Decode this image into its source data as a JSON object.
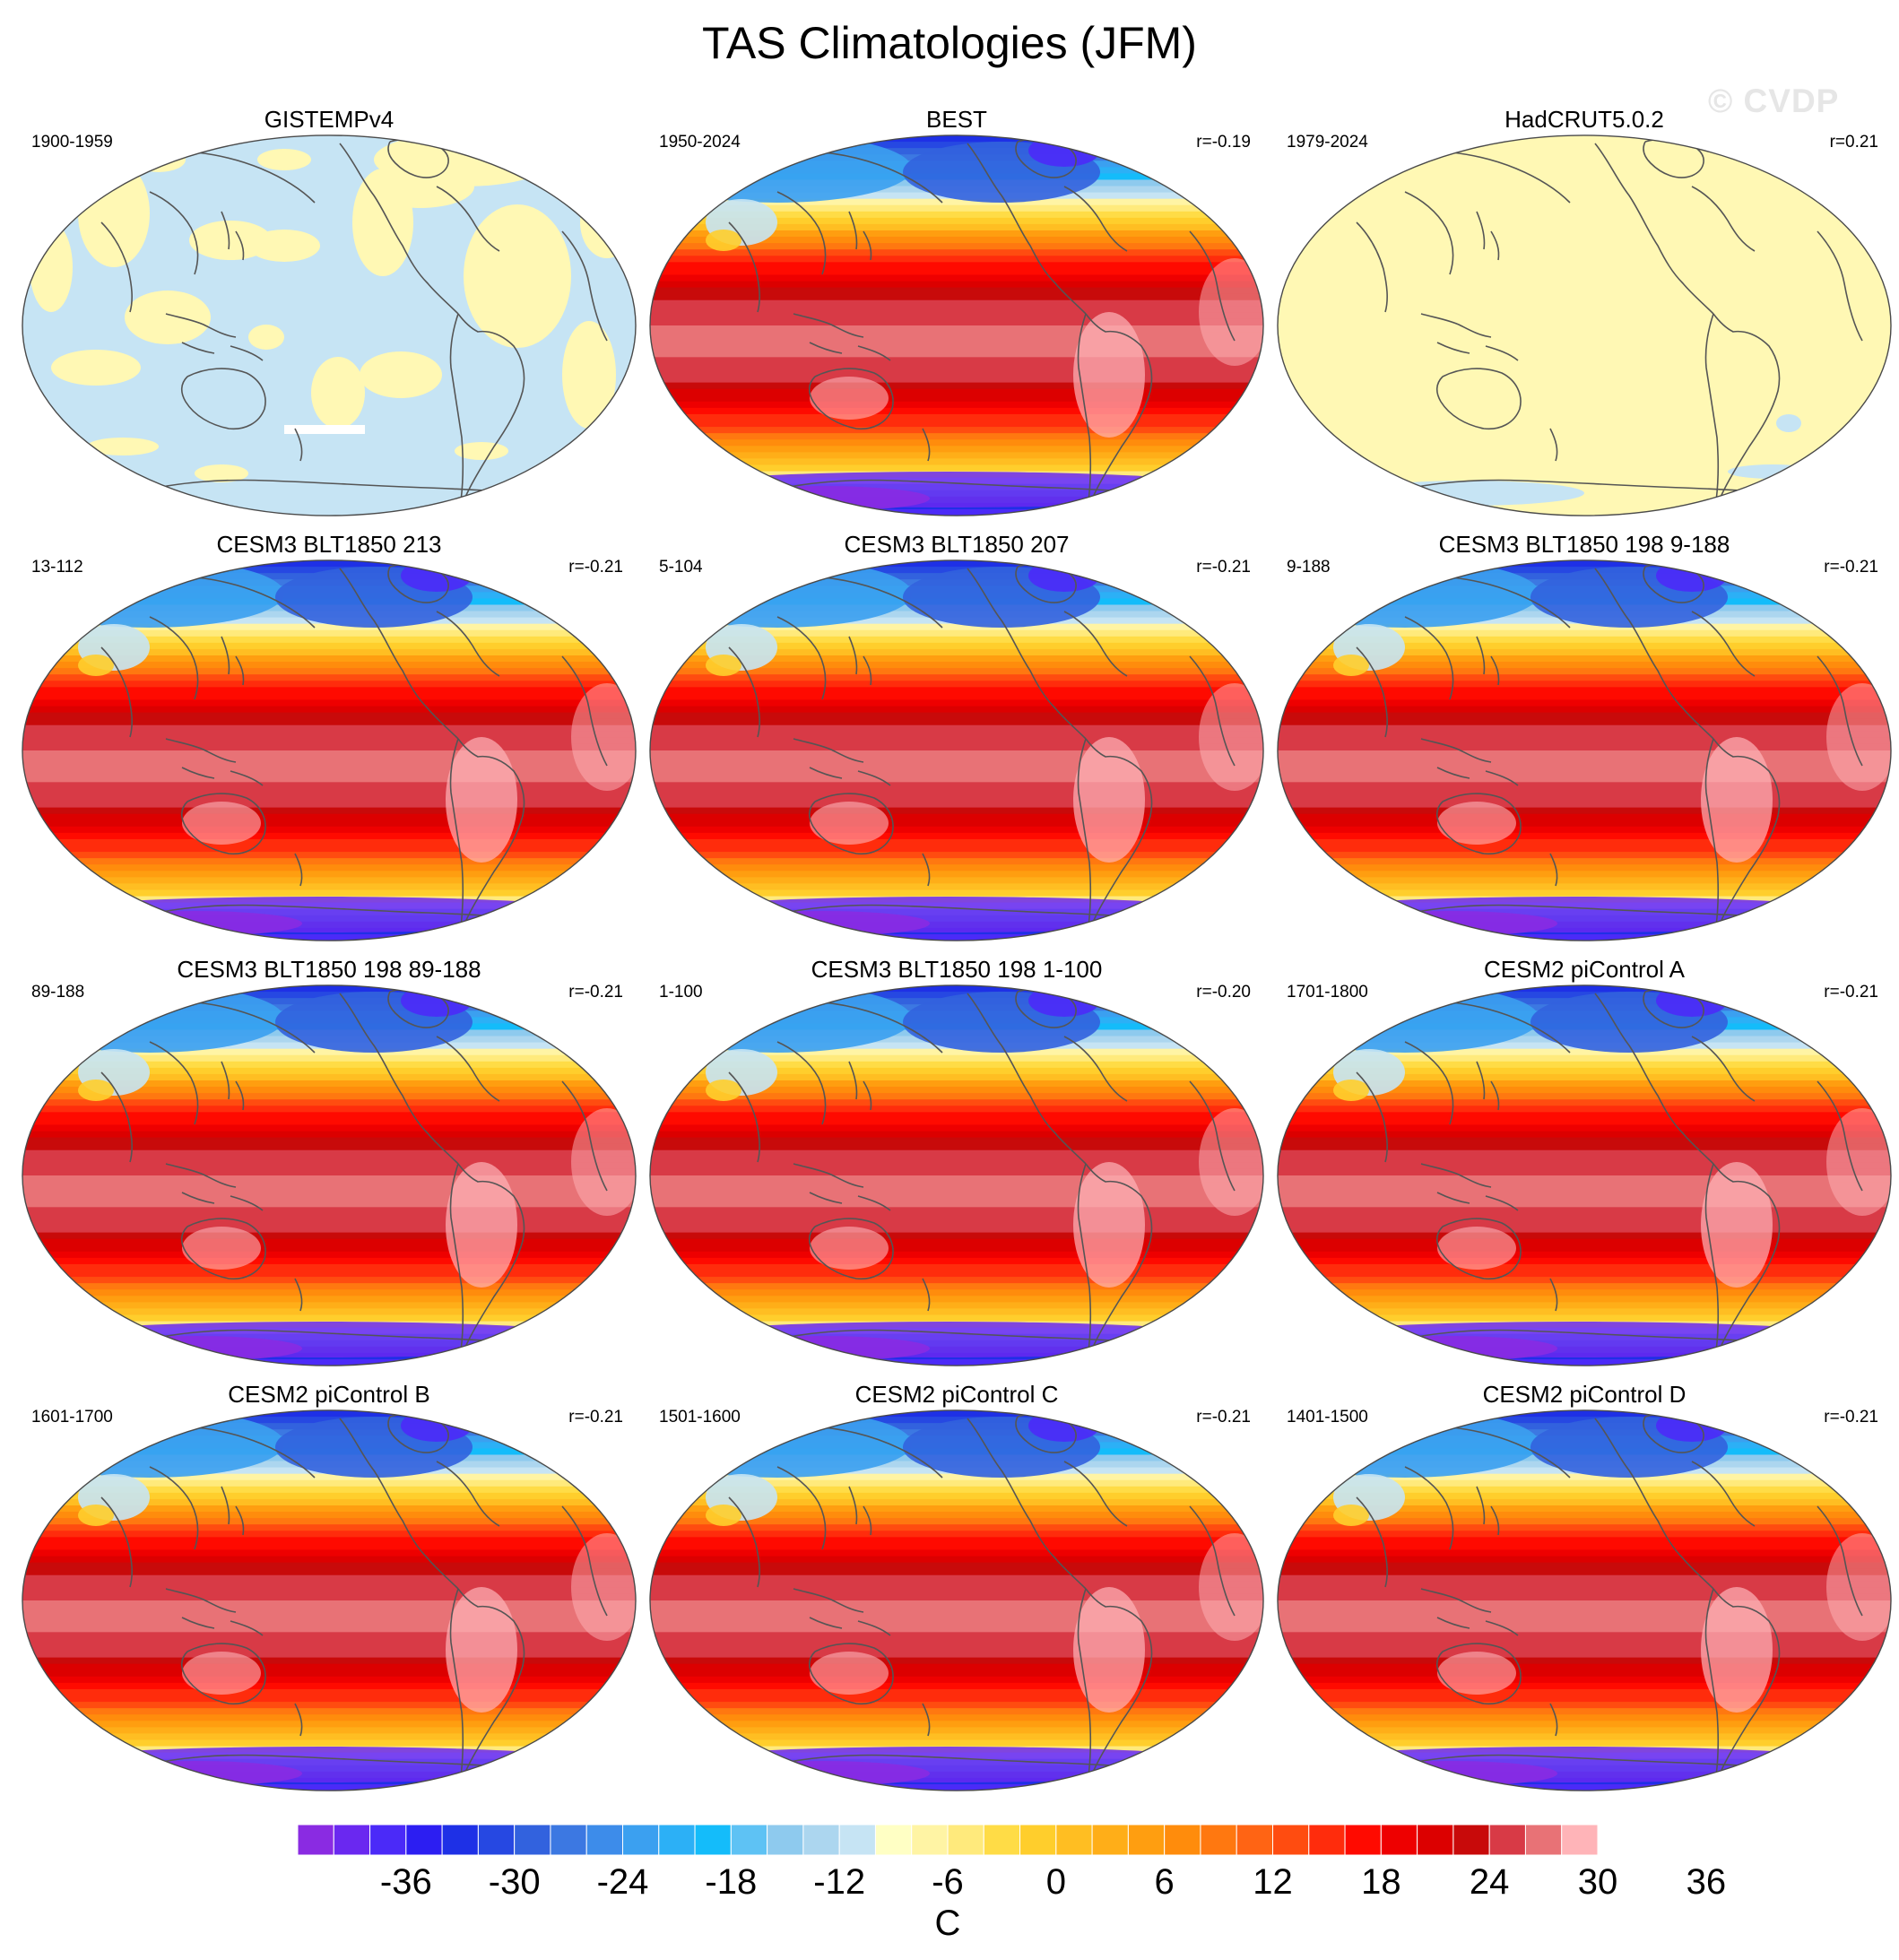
{
  "figure": {
    "title": "TAS Climatologies (JFM)",
    "watermark": "© CVDP"
  },
  "chart_data": [
    {
      "type": "heatmap",
      "title": "GISTEMPv4",
      "period": "1900-1959",
      "correlation": "",
      "pattern": "gistemp"
    },
    {
      "type": "heatmap",
      "title": "BEST",
      "period": "1950-2024",
      "correlation": "r=-0.19",
      "pattern": "full"
    },
    {
      "type": "heatmap",
      "title": "HadCRUT5.0.2",
      "period": "1979-2024",
      "correlation": "r=0.21",
      "pattern": "hadcrut"
    },
    {
      "type": "heatmap",
      "title": "CESM3 BLT1850 213",
      "period": "13-112",
      "correlation": "r=-0.21",
      "pattern": "full"
    },
    {
      "type": "heatmap",
      "title": "CESM3 BLT1850 207",
      "period": "5-104",
      "correlation": "r=-0.21",
      "pattern": "full"
    },
    {
      "type": "heatmap",
      "title": "CESM3 BLT1850 198 9-188",
      "period": "9-188",
      "correlation": "r=-0.21",
      "pattern": "full"
    },
    {
      "type": "heatmap",
      "title": "CESM3 BLT1850 198 89-188",
      "period": "89-188",
      "correlation": "r=-0.21",
      "pattern": "full"
    },
    {
      "type": "heatmap",
      "title": "CESM3 BLT1850 198 1-100",
      "period": "1-100",
      "correlation": "r=-0.20",
      "pattern": "full"
    },
    {
      "type": "heatmap",
      "title": "CESM2 piControl A",
      "period": "1701-1800",
      "correlation": "r=-0.21",
      "pattern": "full"
    },
    {
      "type": "heatmap",
      "title": "CESM2 piControl B",
      "period": "1601-1700",
      "correlation": "r=-0.21",
      "pattern": "full"
    },
    {
      "type": "heatmap",
      "title": "CESM2 piControl C",
      "period": "1501-1600",
      "correlation": "r=-0.21",
      "pattern": "full"
    },
    {
      "type": "heatmap",
      "title": "CESM2 piControl D",
      "period": "1401-1500",
      "correlation": "r=-0.21",
      "pattern": "full"
    }
  ],
  "colorbar": {
    "unit": "C",
    "range": [
      -42,
      42
    ],
    "step": 2,
    "tick_labels": [
      "-36",
      "-30",
      "-24",
      "-18",
      "-12",
      "-6",
      "0",
      "6",
      "12",
      "18",
      "24",
      "30",
      "36"
    ],
    "colors": [
      "#8a2be2",
      "#6a28f0",
      "#4b2af8",
      "#2c1ef2",
      "#1e30e6",
      "#2648e2",
      "#3262de",
      "#3c78e2",
      "#3d8cea",
      "#3ba0f0",
      "#2cb0f6",
      "#14bcfa",
      "#5ec2f4",
      "#8ecaee",
      "#acd6ef",
      "#c6e4f4",
      "#ffffc4",
      "#fff4a4",
      "#ffea7c",
      "#ffdc46",
      "#ffce2c",
      "#ffbe22",
      "#ffae18",
      "#ff9e10",
      "#ff8c0c",
      "#ff7810",
      "#ff6414",
      "#ff4c10",
      "#ff2c0c",
      "#ff0a00",
      "#ee0000",
      "#dc0000",
      "#c80a0a",
      "#d83a46",
      "#e87276",
      "#ffb4b8"
    ]
  }
}
